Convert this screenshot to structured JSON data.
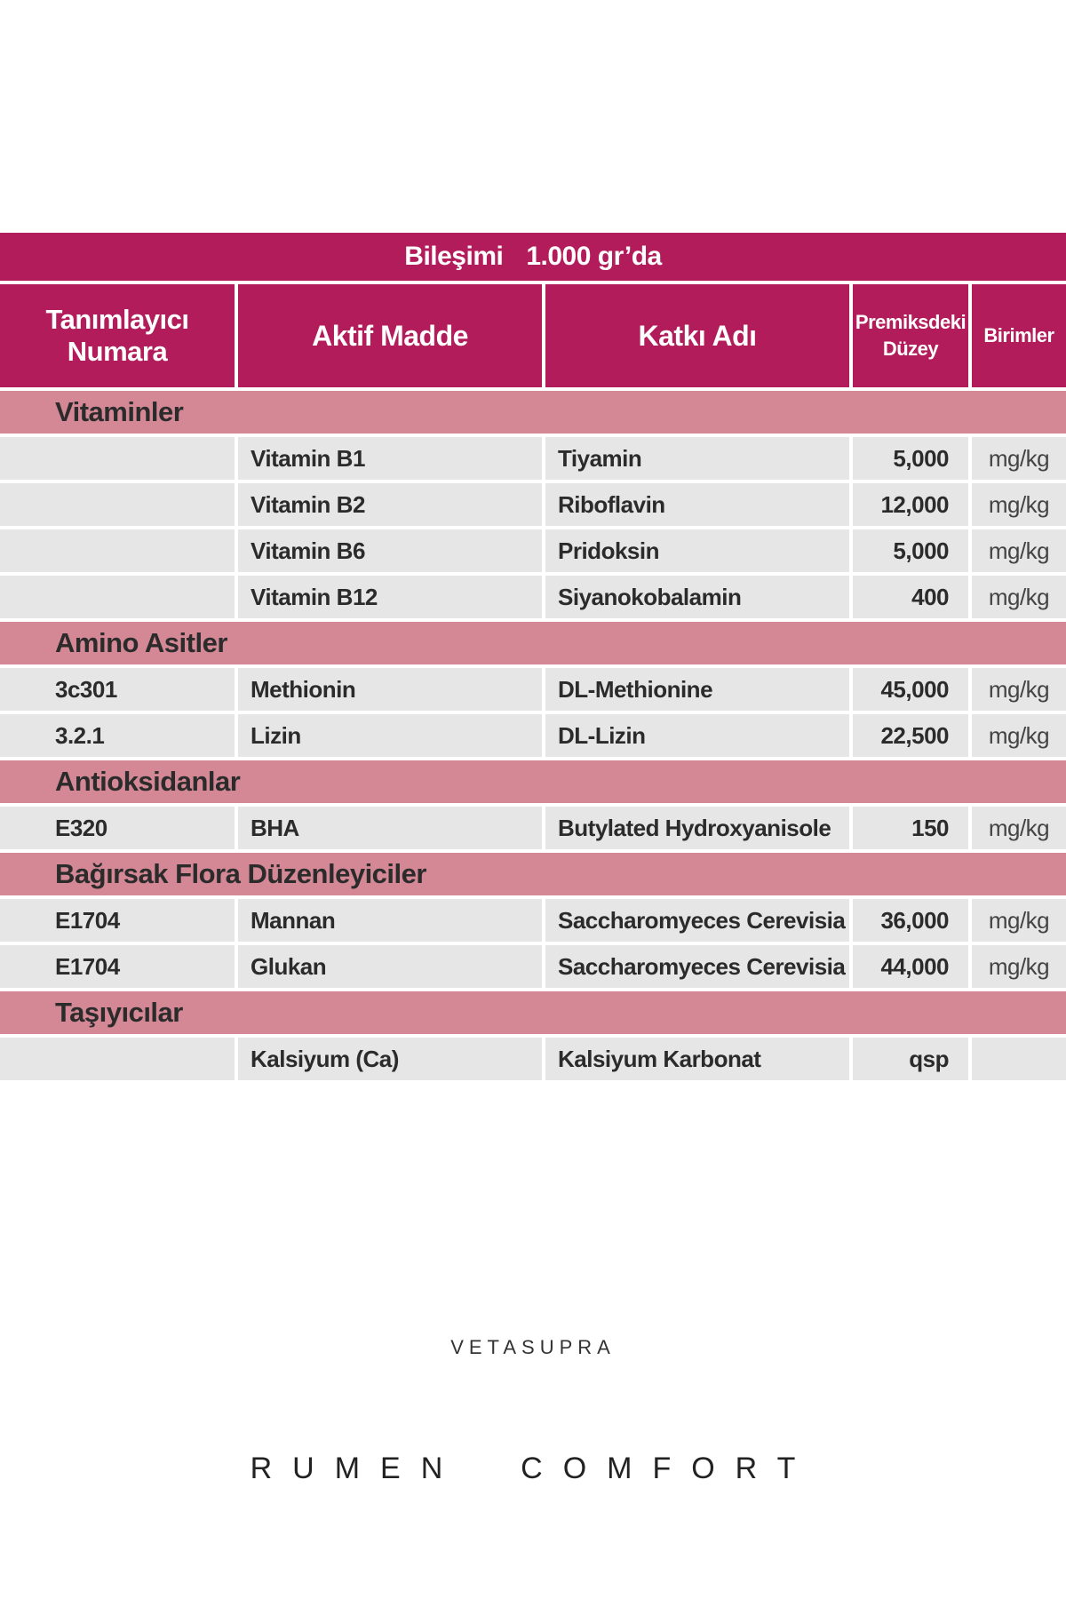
{
  "title": {
    "left": "Bileşimi",
    "right": "1.000 gr’da"
  },
  "columns": {
    "id": "Tanımlayıcı Numara",
    "active": "Aktif Madde",
    "additive": "Katkı Adı",
    "level_line1": "Premiksdeki",
    "level_line2": "Düzey",
    "units": "Birimler"
  },
  "sections": [
    {
      "name": "Vitaminler",
      "rows": [
        {
          "id": "",
          "active": "Vitamin B1",
          "additive": "Tiyamin",
          "level": "5,000",
          "unit": "mg/kg"
        },
        {
          "id": "",
          "active": "Vitamin B2",
          "additive": "Riboflavin",
          "level": "12,000",
          "unit": "mg/kg"
        },
        {
          "id": "",
          "active": "Vitamin B6",
          "additive": "Pridoksin",
          "level": "5,000",
          "unit": "mg/kg"
        },
        {
          "id": "",
          "active": "Vitamin B12",
          "additive": "Siyanokobalamin",
          "level": "400",
          "unit": "mg/kg"
        }
      ]
    },
    {
      "name": "Amino Asitler",
      "rows": [
        {
          "id": "3c301",
          "active": "Methionin",
          "additive": "DL-Methionine",
          "level": "45,000",
          "unit": "mg/kg"
        },
        {
          "id": "3.2.1",
          "active": "Lizin",
          "additive": "DL-Lizin",
          "level": "22,500",
          "unit": "mg/kg"
        }
      ]
    },
    {
      "name": "Antioksidanlar",
      "rows": [
        {
          "id": "E320",
          "active": "BHA",
          "additive": "Butylated Hydroxyanisole",
          "level": "150",
          "unit": "mg/kg"
        }
      ]
    },
    {
      "name": "Bağırsak Flora Düzenleyiciler",
      "rows": [
        {
          "id": "E1704",
          "active": "Mannan",
          "additive": "Saccharomyeces Cerevisia",
          "level": "36,000",
          "unit": "mg/kg"
        },
        {
          "id": "E1704",
          "active": "Glukan",
          "additive": "Saccharomyeces Cerevisia",
          "level": "44,000",
          "unit": "mg/kg"
        }
      ]
    },
    {
      "name": "Taşıyıcılar",
      "rows": [
        {
          "id": "",
          "active": "Kalsiyum (Ca)",
          "additive": "Kalsiyum Karbonat",
          "level": "qsp",
          "unit": ""
        }
      ]
    }
  ],
  "brand": "VETASUPRA",
  "product": "RUMEN  COMFORT",
  "colors": {
    "header": "#b31c5b",
    "section": "#d48896",
    "cell": "#e7e6e6"
  }
}
